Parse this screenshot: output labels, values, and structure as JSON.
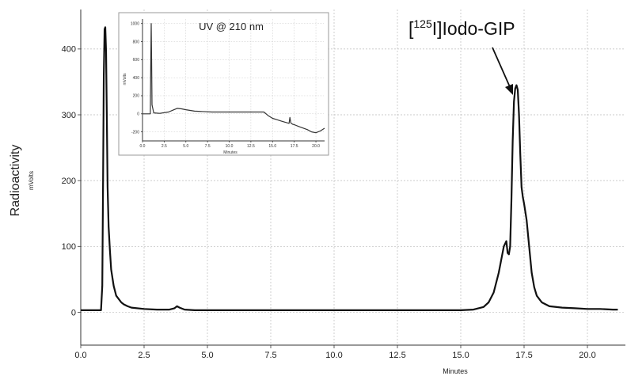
{
  "chart_data": [
    {
      "type": "line",
      "xlabel": "Minutes",
      "ylabel": "Radioactivity",
      "ylabel_unit": "mVolts",
      "xlim": [
        0,
        21.5
      ],
      "ylim": [
        -50,
        460
      ],
      "x_ticks": [
        "0.0",
        "2.5",
        "5.0",
        "7.5",
        "10.0",
        "12.5",
        "15.0",
        "17.5",
        "20.0"
      ],
      "y_ticks": [
        "0",
        "100",
        "200",
        "300",
        "400"
      ],
      "grid": true,
      "annotation": {
        "prefix": "[",
        "superscript": "125",
        "suffix": "I]Iodo-GIP",
        "points_to_x": 17.25,
        "points_to_y": 345
      },
      "series": [
        {
          "x": [
            0,
            0.8,
            0.85,
            0.88,
            0.91,
            0.94,
            0.97,
            1.0,
            1.03,
            1.06,
            1.1,
            1.15,
            1.2,
            1.3,
            1.4,
            1.5,
            1.6,
            1.7,
            1.85,
            2.0,
            2.5,
            3.0,
            3.5,
            3.7,
            3.8,
            3.9,
            4.1,
            4.5,
            5.0,
            6.0,
            7.0,
            8.0,
            9.0,
            10.0,
            11.0,
            12.0,
            13.0,
            14.0,
            15.0,
            15.5,
            15.9,
            16.1,
            16.3,
            16.5,
            16.7,
            16.8,
            16.85,
            16.9,
            16.95,
            17.0,
            17.05,
            17.1,
            17.15,
            17.2,
            17.25,
            17.3,
            17.35,
            17.4,
            17.45,
            17.5,
            17.6,
            17.7,
            17.8,
            17.9,
            18.0,
            18.2,
            18.5,
            19.0,
            19.5,
            20.0,
            20.5,
            21.0,
            21.2
          ],
          "y": [
            3,
            3,
            40,
            200,
            360,
            430,
            433,
            395,
            290,
            190,
            130,
            95,
            65,
            40,
            25,
            20,
            15,
            12,
            9,
            7,
            5,
            4,
            4,
            6,
            9,
            7,
            4,
            3,
            3,
            3,
            3,
            3,
            3,
            3,
            3,
            3,
            3,
            3,
            3,
            4,
            8,
            15,
            30,
            60,
            100,
            108,
            90,
            88,
            100,
            170,
            260,
            320,
            340,
            345,
            338,
            300,
            240,
            190,
            175,
            165,
            140,
            100,
            60,
            38,
            25,
            15,
            9,
            7,
            6,
            5,
            5,
            4,
            4
          ]
        }
      ]
    },
    {
      "type": "line",
      "title": "UV @ 210 nm",
      "xlabel": "Minutes",
      "ylabel": "mVolts",
      "xlim": [
        0,
        21
      ],
      "ylim": [
        -300,
        1050
      ],
      "x_ticks": [
        "0.0",
        "2.5",
        "5.0",
        "7.5",
        "10.0",
        "12.5",
        "15.0",
        "17.5",
        "20.0"
      ],
      "y_ticks": [
        "-200",
        "0",
        "200",
        "400",
        "600",
        "800",
        "1000"
      ],
      "grid": true,
      "series": [
        {
          "x": [
            0,
            0.9,
            0.95,
            1.0,
            1.05,
            1.1,
            1.3,
            2.0,
            3.0,
            3.5,
            4.0,
            4.5,
            5.0,
            6.0,
            8.0,
            10.0,
            12.0,
            14.0,
            14.5,
            15.0,
            15.5,
            16.0,
            16.5,
            16.9,
            17.0,
            17.1,
            17.3,
            17.5,
            18.0,
            19.0,
            19.5,
            20.0,
            20.5,
            21.0
          ],
          "y": [
            0,
            0,
            500,
            1000,
            600,
            100,
            10,
            5,
            20,
            40,
            60,
            55,
            45,
            30,
            20,
            20,
            20,
            20,
            -20,
            -50,
            -65,
            -80,
            -95,
            -105,
            -40,
            -100,
            -115,
            -120,
            -140,
            -175,
            -200,
            -210,
            -190,
            -160
          ]
        }
      ]
    }
  ]
}
